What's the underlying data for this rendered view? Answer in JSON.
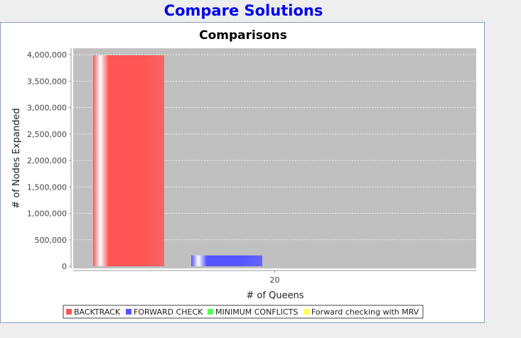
{
  "window": {
    "title": "Compare Solutions"
  },
  "chart_data": {
    "type": "bar",
    "title": "Comparisons",
    "xlabel": "# of Queens",
    "ylabel": "# of Nodes Expanded",
    "categories": [
      "20"
    ],
    "ylim": [
      0,
      4000000
    ],
    "yticks": [
      0,
      500000,
      1000000,
      1500000,
      2000000,
      2500000,
      3000000,
      3500000,
      4000000
    ],
    "ytick_labels": [
      "0",
      "500,000",
      "1,000,000",
      "1,500,000",
      "2,000,000",
      "2,500,000",
      "3,000,000",
      "3,500,000",
      "4,000,000"
    ],
    "grid": true,
    "legend_position": "bottom",
    "series": [
      {
        "name": "BACKTRACK",
        "values": [
          3990000
        ],
        "color": "#ff5555"
      },
      {
        "name": "FORWARD CHECK",
        "values": [
          205000
        ],
        "color": "#5555ff"
      },
      {
        "name": "MINIMUM CONFLICTS",
        "values": [
          0
        ],
        "color": "#55ff55"
      },
      {
        "name": "Forward checking with MRV",
        "values": [
          0
        ],
        "color": "#ffff55"
      }
    ]
  }
}
